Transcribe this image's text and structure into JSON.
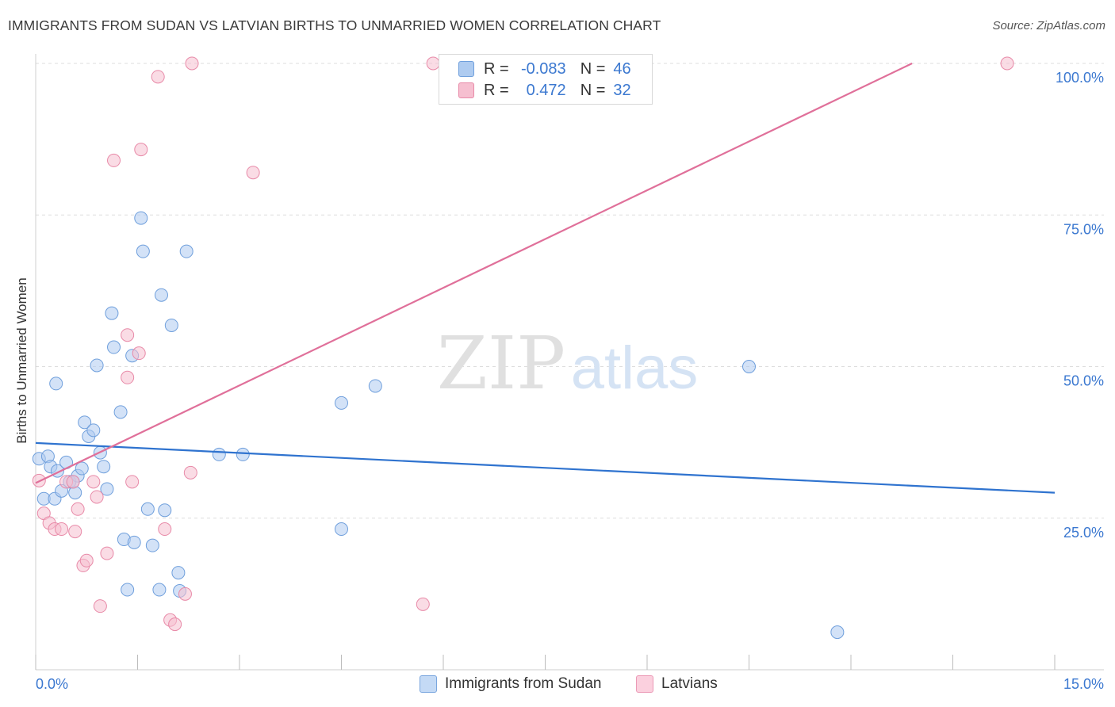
{
  "header": {
    "title": "IMMIGRANTS FROM SUDAN VS LATVIAN BIRTHS TO UNMARRIED WOMEN CORRELATION CHART",
    "source": "Source: ZipAtlas.com"
  },
  "watermark": {
    "part1": "ZIP",
    "part2": "atlas"
  },
  "legend": {
    "rows": [
      {
        "r_label": "R =",
        "r_value": "-0.083",
        "n_label": "N =",
        "n_value": "46"
      },
      {
        "r_label": "R =",
        "r_value": "0.472",
        "n_label": "N =",
        "n_value": "32"
      }
    ]
  },
  "colors": {
    "blue_fill": "#aecbf0",
    "blue_stroke": "#6f9fdc",
    "blue_line": "#2f73cf",
    "pink_fill": "#f6bfd0",
    "pink_stroke": "#e88aa8",
    "pink_line": "#e0709a",
    "tick_text": "#3b78d0",
    "grid": "#dddddd"
  },
  "chart_data": {
    "type": "scatter",
    "title": "IMMIGRANTS FROM SUDAN VS LATVIAN BIRTHS TO UNMARRIED WOMEN CORRELATION CHART",
    "xlabel": "",
    "ylabel": "Births to Unmarried Women",
    "xlim": [
      0,
      15
    ],
    "ylim": [
      0,
      100
    ],
    "x_tick_labels": [
      "0.0%",
      "15.0%"
    ],
    "y_ticks": [
      25,
      50,
      75,
      100
    ],
    "y_tick_labels": [
      "25.0%",
      "50.0%",
      "75.0%",
      "100.0%"
    ],
    "series": [
      {
        "name": "Immigrants from Sudan",
        "r": -0.083,
        "n": 46,
        "trend": {
          "x": [
            0,
            15
          ],
          "y": [
            37.4,
            29.2
          ]
        },
        "points": [
          [
            0.05,
            34.8
          ],
          [
            0.12,
            28.2
          ],
          [
            0.18,
            35.2
          ],
          [
            0.22,
            33.5
          ],
          [
            0.28,
            28.2
          ],
          [
            0.32,
            32.8
          ],
          [
            0.38,
            29.5
          ],
          [
            0.45,
            34.2
          ],
          [
            0.5,
            31.0
          ],
          [
            0.58,
            29.2
          ],
          [
            0.62,
            32.0
          ],
          [
            0.68,
            33.2
          ],
          [
            0.72,
            40.8
          ],
          [
            0.78,
            38.5
          ],
          [
            0.85,
            39.5
          ],
          [
            0.9,
            50.2
          ],
          [
            0.95,
            35.8
          ],
          [
            1.0,
            33.5
          ],
          [
            1.05,
            29.8
          ],
          [
            1.12,
            58.8
          ],
          [
            1.15,
            53.2
          ],
          [
            1.25,
            42.5
          ],
          [
            1.3,
            21.5
          ],
          [
            1.35,
            13.2
          ],
          [
            1.42,
            51.8
          ],
          [
            1.45,
            21.0
          ],
          [
            1.55,
            74.5
          ],
          [
            1.58,
            69.0
          ],
          [
            1.65,
            26.5
          ],
          [
            1.72,
            20.5
          ],
          [
            1.82,
            13.2
          ],
          [
            1.85,
            61.8
          ],
          [
            1.9,
            26.3
          ],
          [
            2.0,
            56.8
          ],
          [
            2.1,
            16.0
          ],
          [
            2.12,
            13.0
          ],
          [
            2.22,
            69.0
          ],
          [
            2.7,
            35.5
          ],
          [
            3.05,
            35.5
          ],
          [
            4.5,
            44.0
          ],
          [
            4.5,
            23.2
          ],
          [
            5.0,
            46.8
          ],
          [
            10.5,
            50.0
          ],
          [
            11.8,
            6.2
          ],
          [
            0.3,
            47.2
          ],
          [
            0.55,
            31.0
          ]
        ]
      },
      {
        "name": "Latvians",
        "r": 0.472,
        "n": 32,
        "trend": {
          "x": [
            0,
            12.9
          ],
          "y": [
            30.8,
            100
          ]
        },
        "points": [
          [
            0.05,
            31.2
          ],
          [
            0.12,
            25.8
          ],
          [
            0.2,
            24.2
          ],
          [
            0.28,
            23.2
          ],
          [
            0.38,
            23.2
          ],
          [
            0.45,
            31.0
          ],
          [
            0.55,
            31.0
          ],
          [
            0.58,
            22.8
          ],
          [
            0.62,
            26.5
          ],
          [
            0.7,
            17.2
          ],
          [
            0.75,
            18.0
          ],
          [
            0.85,
            31.0
          ],
          [
            0.9,
            28.5
          ],
          [
            0.95,
            10.5
          ],
          [
            1.05,
            19.2
          ],
          [
            1.15,
            84.0
          ],
          [
            1.35,
            48.2
          ],
          [
            1.35,
            55.2
          ],
          [
            1.42,
            31.0
          ],
          [
            1.52,
            52.2
          ],
          [
            1.55,
            85.8
          ],
          [
            1.8,
            97.8
          ],
          [
            1.9,
            23.2
          ],
          [
            1.98,
            8.2
          ],
          [
            2.05,
            7.5
          ],
          [
            2.2,
            12.5
          ],
          [
            2.28,
            32.5
          ],
          [
            2.3,
            100
          ],
          [
            3.2,
            82.0
          ],
          [
            5.7,
            10.8
          ],
          [
            5.85,
            100
          ],
          [
            14.3,
            100
          ]
        ]
      }
    ]
  },
  "bottom_legend": {
    "items": [
      {
        "label": "Immigrants from Sudan"
      },
      {
        "label": "Latvians"
      }
    ]
  }
}
